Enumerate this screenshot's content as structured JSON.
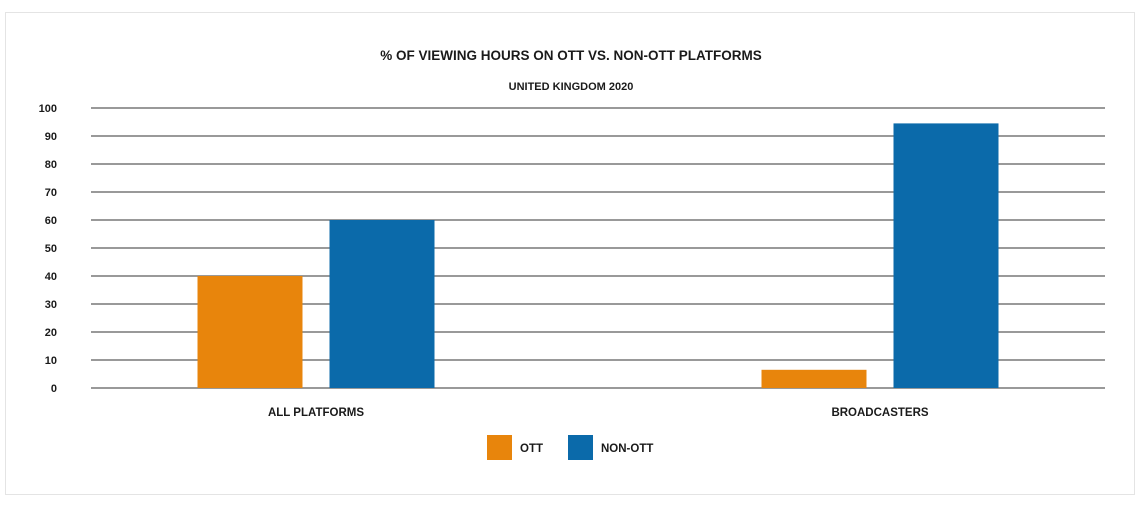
{
  "chart_data": {
    "type": "bar",
    "title": "% OF VIEWING HOURS ON OTT VS. NON-OTT PLATFORMS",
    "subtitle": "UNITED KINGDOM 2020",
    "xlabel": "",
    "ylabel": "",
    "categories": [
      "ALL PLATFORMS",
      "BROADCASTERS"
    ],
    "series": [
      {
        "name": "OTT",
        "color": "#E8850C",
        "values": [
          40,
          6.5
        ]
      },
      {
        "name": "NON-OTT",
        "color": "#0B6AAA",
        "values": [
          60,
          94.5
        ]
      }
    ],
    "ylim": [
      0,
      100
    ],
    "yticks": [
      0,
      10,
      20,
      30,
      40,
      50,
      60,
      70,
      80,
      90,
      100
    ],
    "grid": true,
    "legend_position": "bottom-center"
  }
}
